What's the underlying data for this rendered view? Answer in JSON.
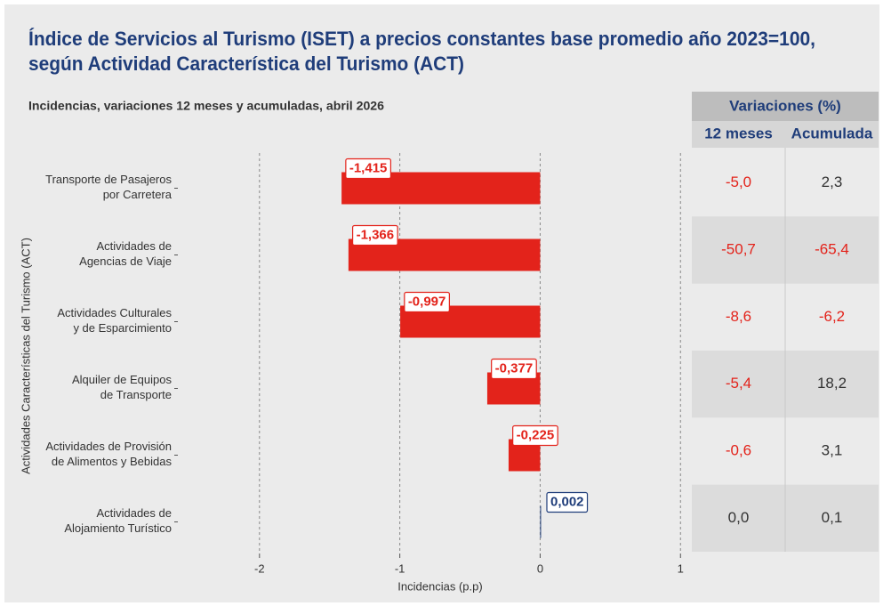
{
  "chart_data": {
    "type": "hbar",
    "title": "Índice de Servicios al Turismo (ISET) a precios constantes base promedio año 2023=100,",
    "title_line2": "según Actividad Característica del Turismo (ACT)",
    "subtitle": "Incidencias, variaciones 12 meses y acumuladas, abril 2026",
    "x_label": "Incidencias (p.p)",
    "y_label": "Actividades Características del Turismo (ACT)",
    "categories": [
      "Transporte de Pasajeros\npor Carretera",
      "Actividades de\nAgencias de Viaje",
      "Actividades Culturales\ny de Esparcimiento",
      "Alquiler de Equipos\nde Transporte",
      "Actividades de Provisión\nde Alimentos y Bebidas",
      "Actividades de\nAlojamiento Turístico"
    ],
    "values": [
      -1.415,
      -1.366,
      -0.997,
      -0.377,
      -0.225,
      0.002
    ],
    "value_labels": [
      "-1,415",
      "-1,366",
      "-0,997",
      "-0,377",
      "-0,225",
      "0,002"
    ],
    "color_negative": "#e3231b",
    "color_positive": "#1f3d7a",
    "xlim": [
      -2.55,
      1.03
    ],
    "xticks": [
      -2,
      -1,
      0,
      1
    ],
    "grid": true
  },
  "table": {
    "header": "Variaciones (%)",
    "columns": [
      "12 meses",
      "Acumulada"
    ],
    "rows": [
      [
        "-5,0",
        "2,3"
      ],
      [
        "-50,7",
        "-65,4"
      ],
      [
        "-8,6",
        "-6,2"
      ],
      [
        "-5,4",
        "18,2"
      ],
      [
        "-0,6",
        "3,1"
      ],
      [
        "0,0",
        "0,1"
      ]
    ]
  }
}
